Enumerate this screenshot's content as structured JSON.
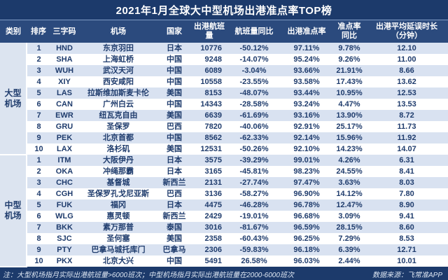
{
  "title": "2021年1月全球大中型机场出港准点率TOP榜",
  "chart_data": {
    "type": "table",
    "title": "2021年1月全球大中型机场出港准点率TOP榜",
    "columns": [
      "类别",
      "排序",
      "三字码",
      "机场",
      "国家",
      "出港航班量",
      "航班量同比",
      "出港准点率",
      "准点率\n同比",
      "出港平均延误时长\n（分钟）"
    ],
    "sections": [
      {
        "category": "大型机场",
        "rows": [
          [
            "1",
            "HND",
            "东京羽田",
            "日本",
            "10776",
            "-50.12%",
            "97.11%",
            "9.78%",
            "12.10"
          ],
          [
            "2",
            "SHA",
            "上海虹桥",
            "中国",
            "9248",
            "-14.07%",
            "95.24%",
            "9.26%",
            "11.00"
          ],
          [
            "3",
            "WUH",
            "武汉天河",
            "中国",
            "6089",
            "-3.04%",
            "93.66%",
            "21.91%",
            "8.66"
          ],
          [
            "4",
            "XIY",
            "西安咸阳",
            "中国",
            "10558",
            "-23.55%",
            "93.58%",
            "17.43%",
            "13.62"
          ],
          [
            "5",
            "LAS",
            "拉斯维加斯麦卡伦",
            "美国",
            "8153",
            "-48.07%",
            "93.44%",
            "10.95%",
            "12.53"
          ],
          [
            "6",
            "CAN",
            "广州白云",
            "中国",
            "14343",
            "-28.58%",
            "93.24%",
            "4.47%",
            "13.53"
          ],
          [
            "7",
            "EWR",
            "纽瓦克自由",
            "美国",
            "6639",
            "-61.69%",
            "93.16%",
            "13.90%",
            "8.72"
          ],
          [
            "8",
            "GRU",
            "圣保罗",
            "巴西",
            "7820",
            "-40.06%",
            "92.91%",
            "25.17%",
            "11.73"
          ],
          [
            "9",
            "PEK",
            "北京首都",
            "中国",
            "8562",
            "-62.33%",
            "92.14%",
            "15.96%",
            "11.92"
          ],
          [
            "10",
            "LAX",
            "洛杉矶",
            "美国",
            "12531",
            "-50.26%",
            "92.10%",
            "14.23%",
            "14.07"
          ]
        ]
      },
      {
        "category": "中型机场",
        "rows": [
          [
            "1",
            "ITM",
            "大阪伊丹",
            "日本",
            "3575",
            "-39.29%",
            "99.01%",
            "4.26%",
            "6.31"
          ],
          [
            "2",
            "OKA",
            "冲绳那霸",
            "日本",
            "3165",
            "-45.81%",
            "98.23%",
            "24.55%",
            "8.41"
          ],
          [
            "3",
            "CHC",
            "基督城",
            "新西兰",
            "2131",
            "-27.74%",
            "97.47%",
            "3.63%",
            "8.03"
          ],
          [
            "4",
            "CGH",
            "圣保罗孔戈尼亚斯",
            "巴西",
            "3136",
            "-58.27%",
            "96.90%",
            "14.12%",
            "7.80"
          ],
          [
            "5",
            "FUK",
            "福冈",
            "日本",
            "4475",
            "-46.28%",
            "96.78%",
            "12.47%",
            "8.90"
          ],
          [
            "6",
            "WLG",
            "惠灵顿",
            "新西兰",
            "2429",
            "-19.01%",
            "96.68%",
            "3.09%",
            "9.41"
          ],
          [
            "7",
            "BKK",
            "素万那普",
            "泰国",
            "3016",
            "-81.67%",
            "96.59%",
            "28.15%",
            "8.60"
          ],
          [
            "8",
            "SJC",
            "圣何塞",
            "美国",
            "2358",
            "-60.43%",
            "96.25%",
            "7.29%",
            "8.53"
          ],
          [
            "9",
            "PTY",
            "巴拿马城托库门",
            "巴拿马",
            "2306",
            "-59.83%",
            "96.18%",
            "6.39%",
            "12.71"
          ],
          [
            "10",
            "PKX",
            "北京大兴",
            "中国",
            "5491",
            "26.58%",
            "96.03%",
            "2.44%",
            "10.01"
          ]
        ]
      }
    ]
  },
  "footer": {
    "note": "注：大型机场指月实际出港航班量>6000班次；中型机场指月实际出港航班量在2000-6000班次",
    "source": "数据来源：飞常准APP"
  },
  "colors": {
    "page_bg": "#1c3a6b",
    "title_bg": "#1c3a6b",
    "title_text": "#ffffff",
    "divider": "#7f9bc4",
    "header_bg": "#2b4a7d",
    "header_text": "#ffffff",
    "stripe_bg": "#d9e2f1",
    "row_bg": "#ffffff",
    "category_bg": "#dce4f0",
    "body_text": "#1f3c6d",
    "footer_bg": "#1c3a6b",
    "footer_text": "#dde6f2"
  }
}
